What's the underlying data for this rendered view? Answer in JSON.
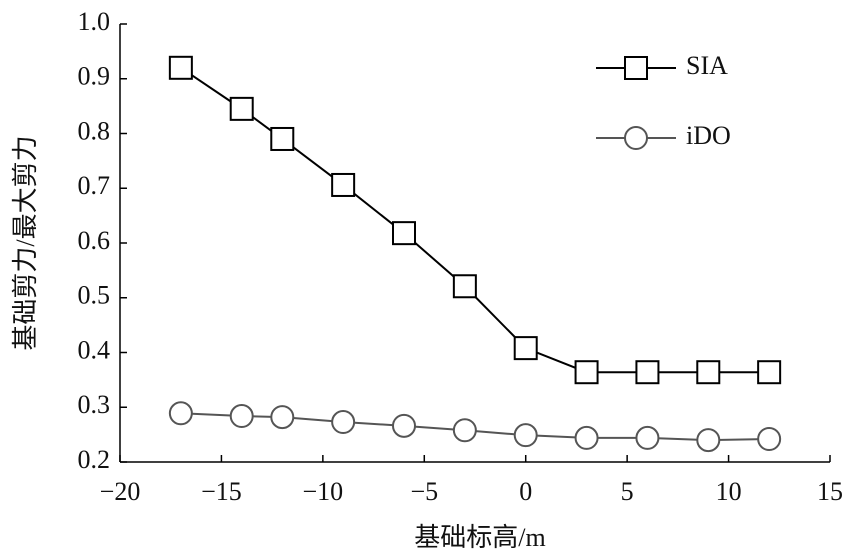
{
  "chart_data": {
    "type": "line",
    "x_label": "基础标高/m",
    "y_label": "基础剪力/最大剪力",
    "x": [
      -17,
      -14,
      -12,
      -9,
      -6,
      -3,
      0,
      3,
      6,
      9,
      12
    ],
    "series": [
      {
        "name": "SIA",
        "color": "#000000",
        "marker": "square",
        "values": [
          0.92,
          0.845,
          0.79,
          0.706,
          0.618,
          0.521,
          0.408,
          0.364,
          0.364,
          0.364,
          0.364
        ]
      },
      {
        "name": "iDO",
        "color": "#555555",
        "marker": "circle",
        "values": [
          0.289,
          0.284,
          0.282,
          0.273,
          0.266,
          0.258,
          0.249,
          0.244,
          0.244,
          0.24,
          0.242
        ]
      }
    ],
    "xlim": [
      -20,
      15
    ],
    "ylim": [
      0.2,
      1.0
    ],
    "xticks": [
      {
        "value": -20,
        "label": "−20"
      },
      {
        "value": -15,
        "label": "−15"
      },
      {
        "value": -10,
        "label": "−10"
      },
      {
        "value": -5,
        "label": "−5"
      },
      0,
      5,
      10,
      15
    ],
    "yticks": [
      0.2,
      0.3,
      0.4,
      0.5,
      0.6,
      0.7,
      0.8,
      0.9,
      {
        "value": 1,
        "label": "1.0"
      }
    ],
    "legend": "upper right"
  }
}
